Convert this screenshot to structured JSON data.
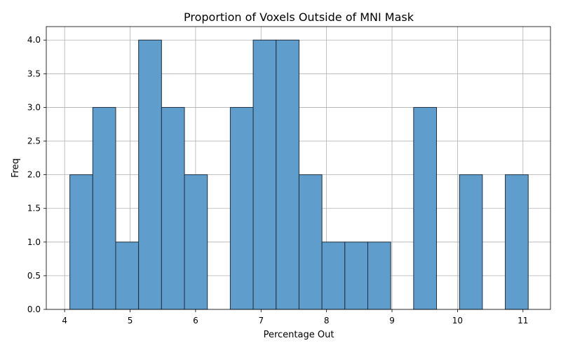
{
  "chart_data": {
    "type": "bar",
    "title": "Proportion of Voxels Outside of MNI Mask",
    "xlabel": "Percentage Out",
    "ylabel": "Freq",
    "xlim": [
      3.72,
      11.42
    ],
    "ylim": [
      0,
      4.2
    ],
    "x_ticks": [
      4,
      5,
      6,
      7,
      8,
      9,
      10,
      11
    ],
    "y_ticks": [
      0.0,
      0.5,
      1.0,
      1.5,
      2.0,
      2.5,
      3.0,
      3.5,
      4.0
    ],
    "grid": true,
    "bins": [
      {
        "x0": 4.08,
        "x1": 4.43,
        "value": 2
      },
      {
        "x0": 4.43,
        "x1": 4.78,
        "value": 3
      },
      {
        "x0": 4.78,
        "x1": 5.13,
        "value": 1
      },
      {
        "x0": 5.13,
        "x1": 5.48,
        "value": 4
      },
      {
        "x0": 5.48,
        "x1": 5.83,
        "value": 3
      },
      {
        "x0": 5.83,
        "x1": 6.18,
        "value": 2
      },
      {
        "x0": 6.53,
        "x1": 6.88,
        "value": 3
      },
      {
        "x0": 6.88,
        "x1": 7.23,
        "value": 4
      },
      {
        "x0": 7.23,
        "x1": 7.58,
        "value": 4
      },
      {
        "x0": 7.58,
        "x1": 7.93,
        "value": 2
      },
      {
        "x0": 7.93,
        "x1": 8.28,
        "value": 1
      },
      {
        "x0": 8.28,
        "x1": 8.63,
        "value": 1
      },
      {
        "x0": 8.63,
        "x1": 8.98,
        "value": 1
      },
      {
        "x0": 9.33,
        "x1": 9.68,
        "value": 3
      },
      {
        "x0": 10.03,
        "x1": 10.38,
        "value": 2
      },
      {
        "x0": 10.73,
        "x1": 11.08,
        "value": 2
      }
    ],
    "bar_color": "#5f9ecc",
    "edge_color": "#1f2f3f"
  }
}
